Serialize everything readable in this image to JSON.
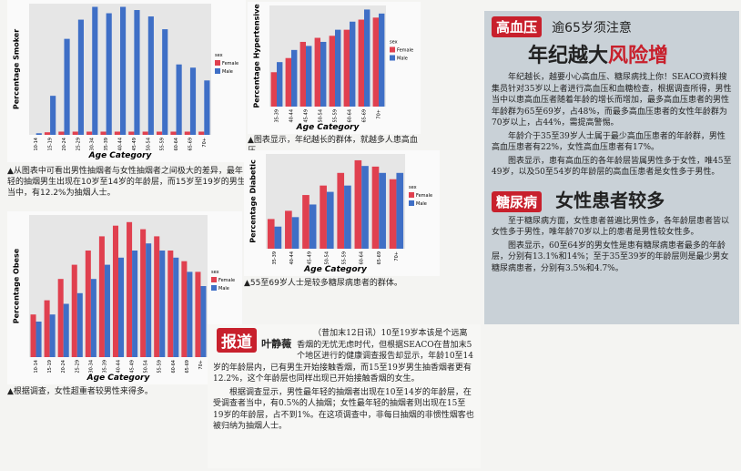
{
  "charts": [
    {
      "type": "bar",
      "y_label": "Percentage Smoker",
      "x_label": "Age Category",
      "legend_title": "sex",
      "categories": [
        "10-14",
        "15-19",
        "20-24",
        "25-29",
        "30-34",
        "35-39",
        "40-44",
        "45-49",
        "50-54",
        "55-59",
        "60-64",
        "65-69",
        "70+"
      ],
      "series": [
        {
          "name": "Female",
          "color": "#e0404f",
          "values": [
            0,
            0.8,
            1,
            1,
            1,
            1,
            1,
            1,
            1,
            1,
            1,
            1,
            1
          ]
        },
        {
          "name": "Male",
          "color": "#3f6fc6",
          "values": [
            0.5,
            12.2,
            30,
            36,
            40,
            38,
            40,
            39,
            37,
            33,
            22,
            21,
            17
          ]
        }
      ],
      "ylim": [
        0,
        41
      ],
      "caption": "▲从图表中可看出男性抽烟者与女性抽烟者之间极大的差异，最年轻的抽烟男生出现在10岁至14岁的年龄层，而15岁至19岁的男生当中，有12.2%为抽烟人士。"
    },
    {
      "type": "bar",
      "y_label": "Percentage Hypertensive",
      "x_label": "Age Category",
      "legend_title": "sex",
      "categories": [
        "35-39",
        "40-44",
        "45-49",
        "50-54",
        "55-59",
        "60-64",
        "65-69",
        "70+"
      ],
      "series": [
        {
          "name": "Female",
          "color": "#e0404f",
          "values": [
            17,
            24,
            32,
            34,
            35,
            38,
            43,
            44
          ]
        },
        {
          "name": "Male",
          "color": "#3f6fc6",
          "values": [
            22,
            28,
            30,
            32,
            38,
            42,
            48,
            46
          ]
        }
      ],
      "ylim": [
        0,
        50
      ],
      "caption": "▲图表显示，年纪越长的群体，就越多人患高血压。"
    },
    {
      "type": "bar",
      "y_label": "Percentage Diabetic",
      "x_label": "Age Category",
      "legend_title": "sex",
      "categories": [
        "35-39",
        "40-44",
        "45-49",
        "50-54",
        "55-59",
        "60-64",
        "65-69",
        "70+"
      ],
      "series": [
        {
          "name": "Female",
          "color": "#e0404f",
          "values": [
            4.7,
            6,
            8.5,
            10,
            12,
            14,
            13,
            11
          ]
        },
        {
          "name": "Male",
          "color": "#3f6fc6",
          "values": [
            3.5,
            5,
            7,
            9,
            10,
            13.1,
            12,
            12
          ]
        }
      ],
      "ylim": [
        0,
        15
      ],
      "caption": "▲55至69岁人士是较多糖尿病患者的群体。"
    },
    {
      "type": "bar",
      "y_label": "Percentage Obese",
      "x_label": "Age Category",
      "legend_title": "sex",
      "categories": [
        "10-14",
        "15-19",
        "20-24",
        "25-29",
        "30-34",
        "35-39",
        "40-44",
        "45-49",
        "50-54",
        "55-59",
        "60-64",
        "65-69",
        "70+"
      ],
      "series": [
        {
          "name": "Female",
          "color": "#e0404f",
          "values": [
            12,
            16,
            22,
            26,
            30,
            34,
            37,
            38,
            36,
            34,
            30,
            27,
            24
          ]
        },
        {
          "name": "Male",
          "color": "#3f6fc6",
          "values": [
            10,
            12,
            15,
            18,
            22,
            26,
            28,
            30,
            32,
            30,
            28,
            24,
            20
          ]
        }
      ],
      "ylim": [
        0,
        40
      ],
      "caption": "▲根据调查，女性超重者较男性来得多。"
    }
  ],
  "right_article": {
    "tag": "高血压",
    "kicker": "逾65岁须注意",
    "headline": "年纪越大",
    "headline_red": "风险增",
    "paragraphs": [
      "年纪越长，越要小心高血压、糖尿病找上你！SEACO资料搜集员针对35岁以上者进行高血压和血糖检查，根据调查所得，男性当中以患高血压者随着年龄的增长而增加，最多高血压患者的男性年龄群为65至69岁，占48%，而最多高血压患者的女性年龄群为70岁以上，占44%，需提高警惕。",
      "年龄介于35至39岁人士属于最少高血压患者的年龄群，男性高血压患者有22%，女性高血压患者有17%。",
      "图表显示，患有高血压的各年龄层皆属男性多于女性，唯45至49岁，以及50至54岁的年龄层的高血压患者是女性多于男性。"
    ],
    "tag2": "糖尿病",
    "headline2": "女性患者较多",
    "paragraphs2": [
      "至于糖尿病方面，女性患者普遍比男性多，各年龄层患者皆以女性多于男性，唯年龄70岁以上的患者是男性较女性多。",
      "图表显示，60至64岁的男女性是患有糖尿病患者最多的年龄层，分别有13.1%和14%；至于35至39岁的年龄层则是最少男女糖尿病患者，分别有3.5%和4.7%。"
    ]
  },
  "bottom_article": {
    "tag": "报道",
    "author": "叶静薇",
    "paragraphs": [
      "（昔加末12日讯）10至19岁本该是个远离香烟的无忧无虑时代，但根据SEACO在昔加末5个地区进行的健康调查报告却显示，年龄10至14岁的年龄层内，已有男生开始接触香烟，而15至19岁男生抽香烟者更有12.2%，这个年龄层也同样出现已开始接触香烟的女生。",
      "根据调查显示，男性最年轻的抽烟者出现在10至14岁的年龄层，在受调查者当中，有0.5%的人抽烟；女性最年轻的抽烟者则出现在15至19岁的年龄层，占不到1%。在这项调查中，非每日抽烟的非惯性烟客也被归纳为抽烟人士。"
    ]
  }
}
